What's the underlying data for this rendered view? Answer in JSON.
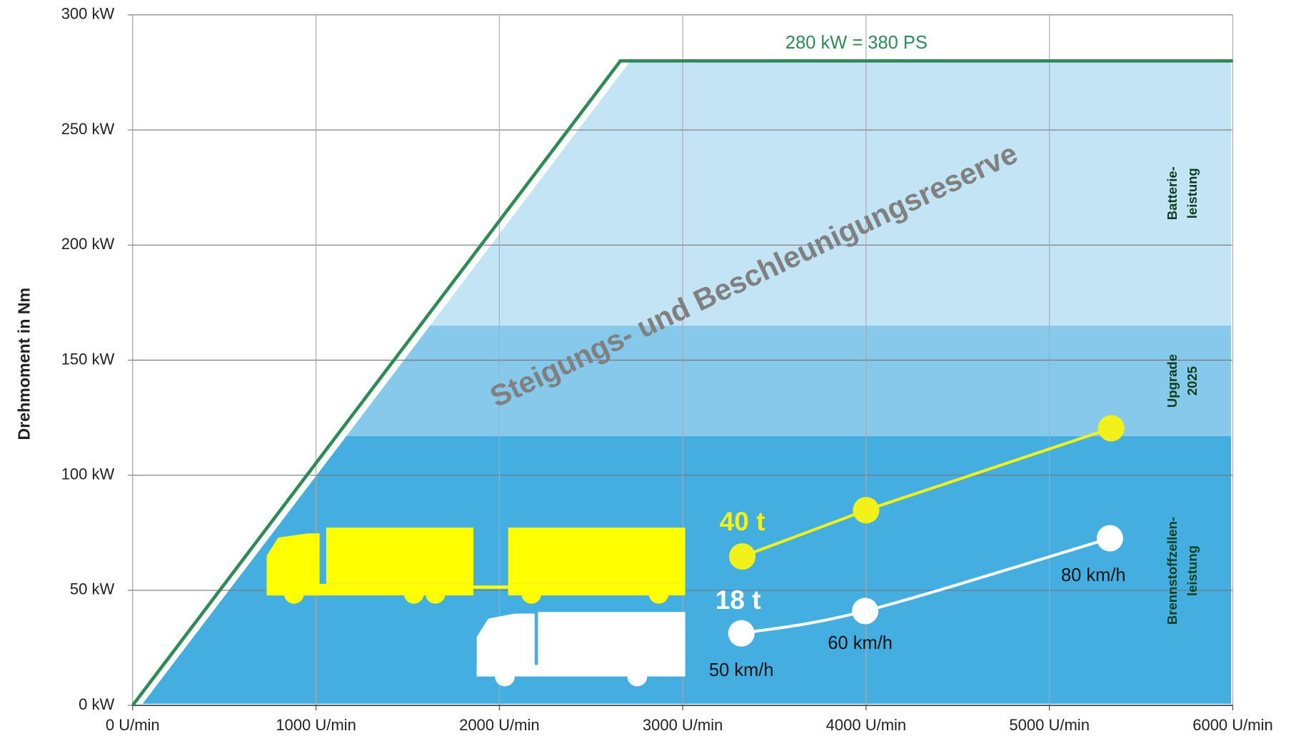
{
  "chart_data": {
    "type": "line",
    "ylabel": "Drehmoment in Nm",
    "xlim": [
      0,
      6000
    ],
    "ylim": [
      0,
      300
    ],
    "xticks": [
      {
        "value": 0,
        "label": "0 U/min"
      },
      {
        "value": 1000,
        "label": "1000 U/min"
      },
      {
        "value": 2000,
        "label": "2000 U/min"
      },
      {
        "value": 3000,
        "label": "3000 U/min"
      },
      {
        "value": 4000,
        "label": "4000 U/min"
      },
      {
        "value": 5000,
        "label": "5000 U/min"
      },
      {
        "value": 6000,
        "label": "6000 U/min"
      }
    ],
    "yticks": [
      {
        "value": 0,
        "label": "0 kW"
      },
      {
        "value": 50,
        "label": "50 kW"
      },
      {
        "value": 100,
        "label": "100 kW"
      },
      {
        "value": 150,
        "label": "150 kW"
      },
      {
        "value": 200,
        "label": "200 kW"
      },
      {
        "value": 250,
        "label": "250 kW"
      },
      {
        "value": 300,
        "label": "300 kW"
      }
    ],
    "grid": true,
    "envelope": {
      "x": [
        0,
        2660,
        6000
      ],
      "values": [
        0,
        280,
        280
      ],
      "color": "#2e8b57",
      "label": "280 kW = 380 PS"
    },
    "reserve_label": "Steigungs- und Beschleunigungsreserve",
    "bands": [
      {
        "name": [
          "Brennstoffzellen-",
          "leistung"
        ],
        "range": [
          0,
          117
        ],
        "color": "#45aee0"
      },
      {
        "name": [
          "Upgrade",
          "2025"
        ],
        "range": [
          117,
          165
        ],
        "color": "#86c9ea"
      },
      {
        "name": [
          "Batterie-",
          "leistung"
        ],
        "range": [
          165,
          280
        ],
        "color": "#c2e4f4"
      }
    ],
    "series": [
      {
        "name": "40 t",
        "color": "#f2f21a",
        "x": [
          3325,
          4000,
          5337
        ],
        "values": [
          64.7,
          84.8,
          120.4
        ]
      },
      {
        "name": "18 t",
        "color": "#ffffff",
        "x": [
          3320,
          3995,
          5330
        ],
        "values": [
          31.3,
          41,
          72.6
        ],
        "point_labels": [
          "50 km/h",
          "60 km/h",
          "80 km/h"
        ]
      }
    ]
  }
}
